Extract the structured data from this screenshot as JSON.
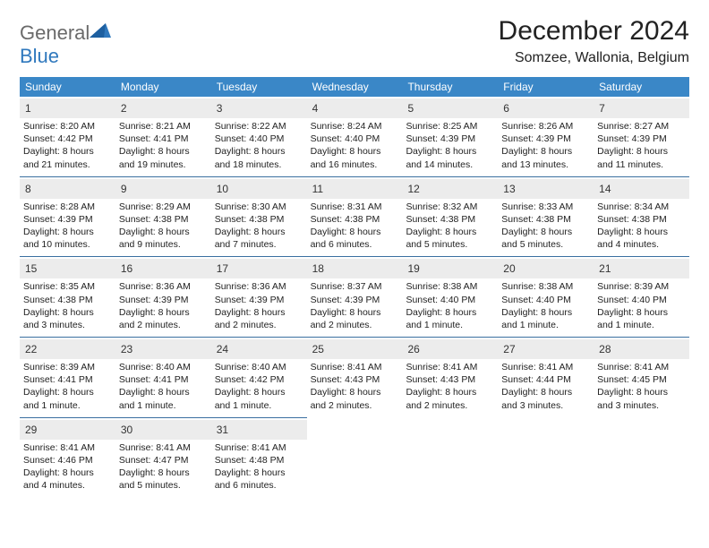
{
  "header": {
    "logo_word1": "General",
    "logo_word2": "Blue",
    "month_title": "December 2024",
    "location": "Somzee, Wallonia, Belgium"
  },
  "colors": {
    "header_bg": "#3a87c7",
    "header_text": "#ffffff",
    "daynum_bg": "#ececec",
    "border": "#3a6fa0",
    "logo_gray": "#6a6a6a",
    "logo_blue": "#2f78bd",
    "body_text": "#222222"
  },
  "day_names": [
    "Sunday",
    "Monday",
    "Tuesday",
    "Wednesday",
    "Thursday",
    "Friday",
    "Saturday"
  ],
  "weeks": [
    [
      {
        "n": "1",
        "sr": "Sunrise: 8:20 AM",
        "ss": "Sunset: 4:42 PM",
        "dl1": "Daylight: 8 hours",
        "dl2": "and 21 minutes."
      },
      {
        "n": "2",
        "sr": "Sunrise: 8:21 AM",
        "ss": "Sunset: 4:41 PM",
        "dl1": "Daylight: 8 hours",
        "dl2": "and 19 minutes."
      },
      {
        "n": "3",
        "sr": "Sunrise: 8:22 AM",
        "ss": "Sunset: 4:40 PM",
        "dl1": "Daylight: 8 hours",
        "dl2": "and 18 minutes."
      },
      {
        "n": "4",
        "sr": "Sunrise: 8:24 AM",
        "ss": "Sunset: 4:40 PM",
        "dl1": "Daylight: 8 hours",
        "dl2": "and 16 minutes."
      },
      {
        "n": "5",
        "sr": "Sunrise: 8:25 AM",
        "ss": "Sunset: 4:39 PM",
        "dl1": "Daylight: 8 hours",
        "dl2": "and 14 minutes."
      },
      {
        "n": "6",
        "sr": "Sunrise: 8:26 AM",
        "ss": "Sunset: 4:39 PM",
        "dl1": "Daylight: 8 hours",
        "dl2": "and 13 minutes."
      },
      {
        "n": "7",
        "sr": "Sunrise: 8:27 AM",
        "ss": "Sunset: 4:39 PM",
        "dl1": "Daylight: 8 hours",
        "dl2": "and 11 minutes."
      }
    ],
    [
      {
        "n": "8",
        "sr": "Sunrise: 8:28 AM",
        "ss": "Sunset: 4:39 PM",
        "dl1": "Daylight: 8 hours",
        "dl2": "and 10 minutes."
      },
      {
        "n": "9",
        "sr": "Sunrise: 8:29 AM",
        "ss": "Sunset: 4:38 PM",
        "dl1": "Daylight: 8 hours",
        "dl2": "and 9 minutes."
      },
      {
        "n": "10",
        "sr": "Sunrise: 8:30 AM",
        "ss": "Sunset: 4:38 PM",
        "dl1": "Daylight: 8 hours",
        "dl2": "and 7 minutes."
      },
      {
        "n": "11",
        "sr": "Sunrise: 8:31 AM",
        "ss": "Sunset: 4:38 PM",
        "dl1": "Daylight: 8 hours",
        "dl2": "and 6 minutes."
      },
      {
        "n": "12",
        "sr": "Sunrise: 8:32 AM",
        "ss": "Sunset: 4:38 PM",
        "dl1": "Daylight: 8 hours",
        "dl2": "and 5 minutes."
      },
      {
        "n": "13",
        "sr": "Sunrise: 8:33 AM",
        "ss": "Sunset: 4:38 PM",
        "dl1": "Daylight: 8 hours",
        "dl2": "and 5 minutes."
      },
      {
        "n": "14",
        "sr": "Sunrise: 8:34 AM",
        "ss": "Sunset: 4:38 PM",
        "dl1": "Daylight: 8 hours",
        "dl2": "and 4 minutes."
      }
    ],
    [
      {
        "n": "15",
        "sr": "Sunrise: 8:35 AM",
        "ss": "Sunset: 4:38 PM",
        "dl1": "Daylight: 8 hours",
        "dl2": "and 3 minutes."
      },
      {
        "n": "16",
        "sr": "Sunrise: 8:36 AM",
        "ss": "Sunset: 4:39 PM",
        "dl1": "Daylight: 8 hours",
        "dl2": "and 2 minutes."
      },
      {
        "n": "17",
        "sr": "Sunrise: 8:36 AM",
        "ss": "Sunset: 4:39 PM",
        "dl1": "Daylight: 8 hours",
        "dl2": "and 2 minutes."
      },
      {
        "n": "18",
        "sr": "Sunrise: 8:37 AM",
        "ss": "Sunset: 4:39 PM",
        "dl1": "Daylight: 8 hours",
        "dl2": "and 2 minutes."
      },
      {
        "n": "19",
        "sr": "Sunrise: 8:38 AM",
        "ss": "Sunset: 4:40 PM",
        "dl1": "Daylight: 8 hours",
        "dl2": "and 1 minute."
      },
      {
        "n": "20",
        "sr": "Sunrise: 8:38 AM",
        "ss": "Sunset: 4:40 PM",
        "dl1": "Daylight: 8 hours",
        "dl2": "and 1 minute."
      },
      {
        "n": "21",
        "sr": "Sunrise: 8:39 AM",
        "ss": "Sunset: 4:40 PM",
        "dl1": "Daylight: 8 hours",
        "dl2": "and 1 minute."
      }
    ],
    [
      {
        "n": "22",
        "sr": "Sunrise: 8:39 AM",
        "ss": "Sunset: 4:41 PM",
        "dl1": "Daylight: 8 hours",
        "dl2": "and 1 minute."
      },
      {
        "n": "23",
        "sr": "Sunrise: 8:40 AM",
        "ss": "Sunset: 4:41 PM",
        "dl1": "Daylight: 8 hours",
        "dl2": "and 1 minute."
      },
      {
        "n": "24",
        "sr": "Sunrise: 8:40 AM",
        "ss": "Sunset: 4:42 PM",
        "dl1": "Daylight: 8 hours",
        "dl2": "and 1 minute."
      },
      {
        "n": "25",
        "sr": "Sunrise: 8:41 AM",
        "ss": "Sunset: 4:43 PM",
        "dl1": "Daylight: 8 hours",
        "dl2": "and 2 minutes."
      },
      {
        "n": "26",
        "sr": "Sunrise: 8:41 AM",
        "ss": "Sunset: 4:43 PM",
        "dl1": "Daylight: 8 hours",
        "dl2": "and 2 minutes."
      },
      {
        "n": "27",
        "sr": "Sunrise: 8:41 AM",
        "ss": "Sunset: 4:44 PM",
        "dl1": "Daylight: 8 hours",
        "dl2": "and 3 minutes."
      },
      {
        "n": "28",
        "sr": "Sunrise: 8:41 AM",
        "ss": "Sunset: 4:45 PM",
        "dl1": "Daylight: 8 hours",
        "dl2": "and 3 minutes."
      }
    ],
    [
      {
        "n": "29",
        "sr": "Sunrise: 8:41 AM",
        "ss": "Sunset: 4:46 PM",
        "dl1": "Daylight: 8 hours",
        "dl2": "and 4 minutes."
      },
      {
        "n": "30",
        "sr": "Sunrise: 8:41 AM",
        "ss": "Sunset: 4:47 PM",
        "dl1": "Daylight: 8 hours",
        "dl2": "and 5 minutes."
      },
      {
        "n": "31",
        "sr": "Sunrise: 8:41 AM",
        "ss": "Sunset: 4:48 PM",
        "dl1": "Daylight: 8 hours",
        "dl2": "and 6 minutes."
      },
      {
        "empty": true
      },
      {
        "empty": true
      },
      {
        "empty": true
      },
      {
        "empty": true
      }
    ]
  ]
}
